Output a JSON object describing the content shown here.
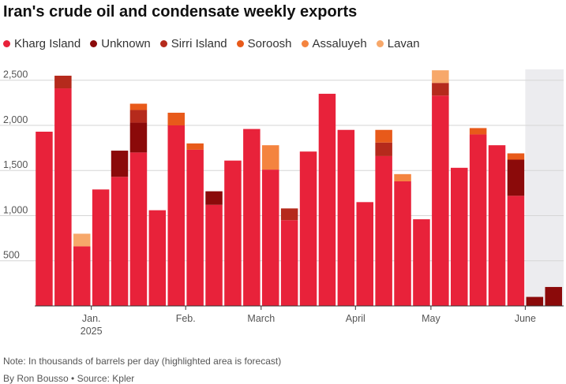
{
  "chart_data": {
    "type": "bar",
    "stacked": true,
    "title": "Iran's crude oil and condensate weekly exports",
    "note": "Note: In thousands of barrels per day (highlighted area is forecast)",
    "byline": "By Ron Bousso • Source: Kpler",
    "ylim": [
      0,
      2620
    ],
    "yticks": [
      500,
      1000,
      1500,
      2000,
      2500
    ],
    "ytick_labels": [
      "500",
      "1,000",
      "1,500",
      "2,000",
      "2,500"
    ],
    "grid": true,
    "legend_position": "top",
    "forecast_start_index": 26,
    "xtick_labels": [
      {
        "after_index": 2,
        "label": "Jan.",
        "sub": "2025"
      },
      {
        "after_index": 7,
        "label": "Feb.",
        "sub": ""
      },
      {
        "after_index": 11,
        "label": "March",
        "sub": ""
      },
      {
        "after_index": 16,
        "label": "April",
        "sub": ""
      },
      {
        "after_index": 20,
        "label": "May",
        "sub": ""
      },
      {
        "after_index": 25,
        "label": "June",
        "sub": ""
      }
    ],
    "series": [
      {
        "name": "Kharg Island",
        "color": "#e8223a",
        "values": [
          1930,
          2410,
          660,
          1290,
          1430,
          1700,
          1060,
          2000,
          1730,
          1120,
          1610,
          1960,
          1510,
          950,
          1710,
          2350,
          1950,
          1150,
          1660,
          1380,
          960,
          2330,
          1530,
          1900,
          1780,
          1220,
          0,
          0
        ]
      },
      {
        "name": "Unknown",
        "color": "#8b0a0a",
        "values": [
          0,
          0,
          0,
          0,
          290,
          330,
          0,
          0,
          0,
          150,
          0,
          0,
          0,
          0,
          0,
          0,
          0,
          0,
          0,
          0,
          0,
          0,
          0,
          0,
          0,
          400,
          100,
          210
        ]
      },
      {
        "name": "Sirri Island",
        "color": "#b52a1c",
        "values": [
          0,
          140,
          0,
          0,
          0,
          140,
          0,
          0,
          0,
          0,
          0,
          0,
          0,
          130,
          0,
          0,
          0,
          0,
          150,
          0,
          0,
          140,
          0,
          0,
          0,
          0,
          0,
          0
        ]
      },
      {
        "name": "Soroosh",
        "color": "#e85a1a",
        "values": [
          0,
          0,
          0,
          0,
          0,
          70,
          0,
          140,
          70,
          0,
          0,
          0,
          0,
          0,
          0,
          0,
          0,
          0,
          140,
          0,
          0,
          0,
          0,
          70,
          0,
          70,
          0,
          0
        ]
      },
      {
        "name": "Assaluyeh",
        "color": "#f4843f",
        "values": [
          0,
          0,
          0,
          0,
          0,
          0,
          0,
          0,
          0,
          0,
          0,
          0,
          270,
          0,
          0,
          0,
          0,
          0,
          0,
          80,
          0,
          0,
          0,
          0,
          0,
          0,
          0,
          0
        ]
      },
      {
        "name": "Lavan",
        "color": "#f7a86a",
        "values": [
          0,
          0,
          140,
          0,
          0,
          0,
          0,
          0,
          0,
          0,
          0,
          0,
          0,
          0,
          0,
          0,
          0,
          0,
          0,
          0,
          0,
          140,
          0,
          0,
          0,
          0,
          0,
          0
        ]
      }
    ]
  }
}
